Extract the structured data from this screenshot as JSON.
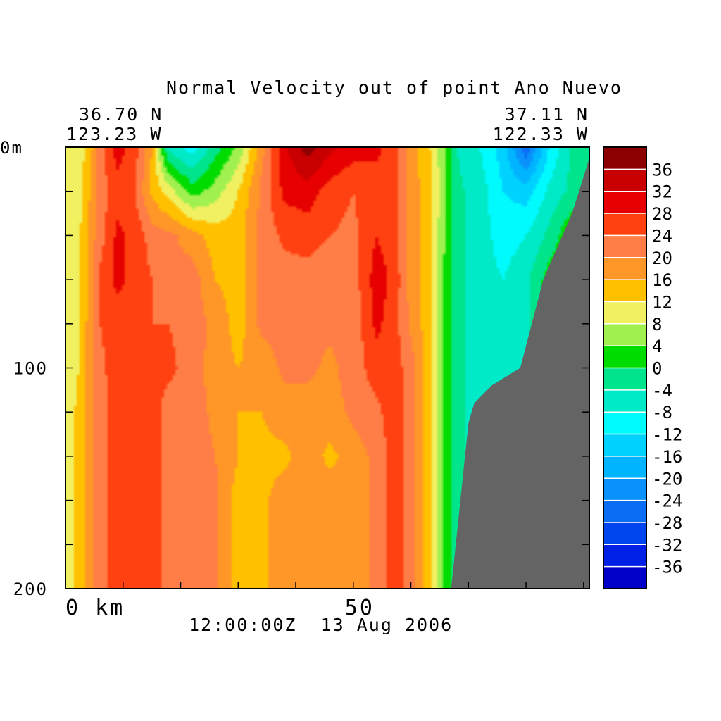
{
  "chart_data": {
    "type": "heatmap",
    "title": "Normal Velocity out of point Ano Nuevo",
    "subtitle": "12:00:00Z  13 Aug 2006",
    "endpoints": {
      "left": {
        "lat": "36.70 N",
        "lon": "123.23 W"
      },
      "right": {
        "lat": "37.11 N",
        "lon": "122.33 W"
      }
    },
    "x_axis": {
      "range": [
        0,
        91
      ],
      "ticks": [
        {
          "value": 0,
          "label": "0 km"
        },
        {
          "value": 50,
          "label": "50"
        }
      ],
      "minor_step": 10
    },
    "y_axis": {
      "range": [
        0,
        200
      ],
      "inverted": true,
      "ticks": [
        {
          "value": 0,
          "label": "0m"
        },
        {
          "value": 100,
          "label": "100"
        },
        {
          "value": 200,
          "label": "200"
        }
      ],
      "minor_step": 20
    },
    "colorbar": {
      "levels": [
        -40,
        -36,
        -32,
        -28,
        -24,
        -20,
        -16,
        -12,
        -8,
        -4,
        0,
        4,
        8,
        12,
        16,
        20,
        24,
        28,
        32,
        36,
        40
      ],
      "labels": [
        "36",
        "32",
        "28",
        "24",
        "20",
        "16",
        "12",
        "8",
        "4",
        "0",
        "-4",
        "-8",
        "-12",
        "-16",
        "-20",
        "-24",
        "-28",
        "-32",
        "-36"
      ],
      "colors": [
        "#0000c8",
        "#0020e6",
        "#0046f0",
        "#0a6ef5",
        "#0a91fa",
        "#00b4ff",
        "#00d2ff",
        "#00fbff",
        "#00eac8",
        "#00e58c",
        "#00dc00",
        "#a0f050",
        "#f0f060",
        "#ffc000",
        "#ff9628",
        "#ff7d46",
        "#ff4010",
        "#e60000",
        "#c80000",
        "#8c0000"
      ]
    },
    "terrain_color": "#646464",
    "columns": [
      {
        "x": 0,
        "v": [
          8,
          8,
          8,
          8,
          8,
          8,
          8,
          8,
          8,
          8,
          8
        ]
      },
      {
        "x": 2,
        "v": [
          10,
          9,
          10,
          10,
          11,
          11,
          13,
          13,
          13,
          13,
          13
        ]
      },
      {
        "x": 4,
        "v": [
          13,
          15,
          17,
          17,
          17,
          18,
          18,
          18,
          18,
          18,
          18
        ]
      },
      {
        "x": 6,
        "v": [
          22,
          22,
          22,
          25,
          24,
          23,
          22,
          22,
          22,
          22,
          22
        ]
      },
      {
        "x": 9,
        "v": [
          30,
          26,
          29,
          29,
          26,
          26,
          26,
          26,
          26,
          26,
          26
        ]
      },
      {
        "x": 12,
        "v": [
          26,
          24,
          27,
          27,
          26,
          26,
          26,
          26,
          26,
          26,
          26
        ]
      },
      {
        "x": 15,
        "v": [
          16,
          15,
          22,
          24,
          24,
          25,
          26,
          26,
          26,
          26,
          26
        ]
      },
      {
        "x": 18,
        "v": [
          -6,
          10,
          21,
          21,
          24,
          25,
          22,
          22,
          22,
          22,
          22
        ]
      },
      {
        "x": 22,
        "v": [
          -10,
          2,
          18,
          22,
          22,
          22,
          22,
          22,
          22,
          22,
          22
        ]
      },
      {
        "x": 26,
        "v": [
          -2,
          6,
          14,
          16,
          19,
          18,
          19,
          20,
          21,
          21,
          21
        ]
      },
      {
        "x": 30,
        "v": [
          5,
          12,
          14,
          14,
          14,
          16,
          16,
          16,
          14,
          14,
          14
        ]
      },
      {
        "x": 34,
        "v": [
          18,
          21,
          21,
          21,
          21,
          17,
          16,
          15,
          15,
          15,
          15
        ]
      },
      {
        "x": 38,
        "v": [
          31,
          29,
          25,
          22,
          22,
          21,
          18,
          15,
          18,
          18,
          18
        ]
      },
      {
        "x": 42,
        "v": [
          38,
          30,
          26,
          22,
          21,
          21,
          18,
          18,
          18,
          18,
          18
        ]
      },
      {
        "x": 46,
        "v": [
          33,
          26,
          24,
          21,
          21,
          19,
          18,
          15,
          18,
          18,
          18
        ]
      },
      {
        "x": 50,
        "v": [
          30,
          24,
          23,
          22,
          21,
          22,
          21,
          18,
          18,
          18,
          18
        ]
      },
      {
        "x": 54,
        "v": [
          29,
          26,
          28,
          30,
          29,
          26,
          23,
          21,
          21,
          21,
          21
        ]
      },
      {
        "x": 57,
        "v": [
          26,
          26,
          26,
          27,
          26,
          26,
          26,
          26,
          26,
          26,
          26
        ]
      },
      {
        "x": 60,
        "v": [
          18,
          18,
          18,
          18,
          19,
          22,
          22,
          22,
          22,
          22,
          22
        ]
      },
      {
        "x": 63,
        "v": [
          13,
          14,
          14,
          14,
          14,
          14,
          14,
          14,
          14,
          14,
          14
        ]
      },
      {
        "x": 65,
        "v": [
          7,
          8,
          7,
          6,
          6,
          6,
          6,
          6,
          6,
          6,
          6
        ]
      },
      {
        "x": 68,
        "v": [
          -4,
          -3,
          -3,
          -3,
          -3,
          -3,
          -3,
          -3,
          -3,
          -3,
          -3
        ]
      },
      {
        "x": 72,
        "v": [
          -8,
          -6,
          -6,
          -6,
          -6,
          -6,
          -6,
          -6,
          -6,
          -6,
          -6
        ]
      },
      {
        "x": 76,
        "v": [
          -14,
          -12,
          -10,
          -8,
          -6,
          -6,
          -6,
          -6,
          -6,
          -6,
          -6
        ]
      },
      {
        "x": 80,
        "v": [
          -27,
          -14,
          -8,
          -5,
          -5,
          -5,
          -5,
          -5,
          -5,
          -5,
          -5
        ]
      },
      {
        "x": 84,
        "v": [
          -12,
          -7,
          -3,
          2,
          2,
          2,
          2,
          2,
          2,
          2,
          2
        ]
      },
      {
        "x": 88,
        "v": [
          -3,
          -3,
          4,
          4,
          4,
          4,
          4,
          4,
          4,
          4,
          4
        ]
      },
      {
        "x": 91,
        "v": [
          -2,
          -2,
          4,
          4,
          4,
          4,
          4,
          4,
          4,
          4,
          4
        ]
      }
    ],
    "bottom_profile": [
      [
        91,
        5
      ],
      [
        88,
        30
      ],
      [
        83,
        60
      ],
      [
        79,
        100
      ],
      [
        74,
        108
      ],
      [
        71,
        116
      ],
      [
        70,
        125
      ],
      [
        67,
        200
      ],
      [
        91,
        200
      ]
    ]
  }
}
